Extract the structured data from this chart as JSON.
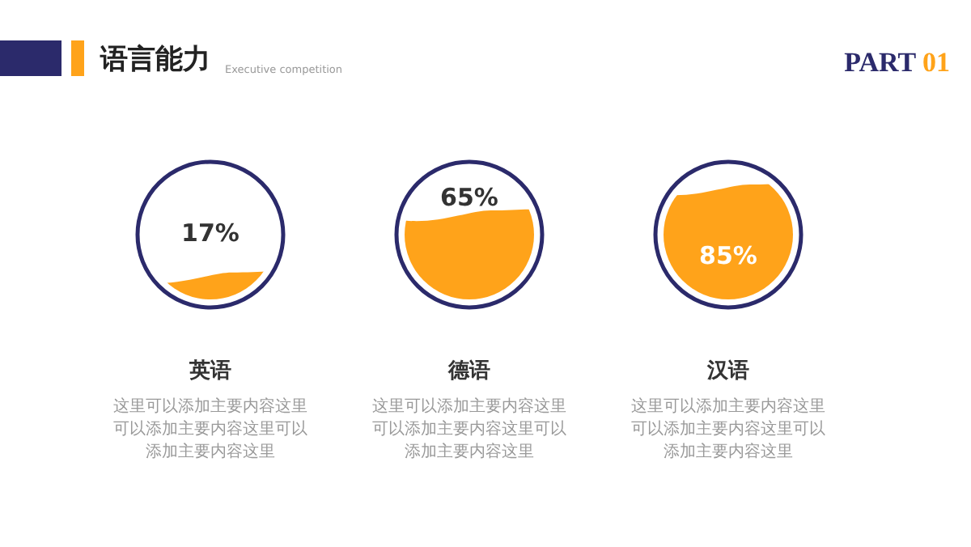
{
  "chart_data": {
    "type": "other",
    "title": "语言能力",
    "subtitle": "Executive competition",
    "categories": [
      "英语",
      "德语",
      "汉语"
    ],
    "values": [
      17,
      65,
      85
    ],
    "value_labels": [
      "17%",
      "65%",
      "85%"
    ],
    "color": "#ffa31a",
    "annotations": [
      "PART 01",
      "这里可以添加主要内容这里可以添加主要内容这里可以添加主要内容这里",
      "这里可以添加主要内容这里可以添加主要内容这里可以添加主要内容这里",
      "这里可以添加主要内容这里可以添加主要内容这里可以添加主要内容这里"
    ]
  }
}
